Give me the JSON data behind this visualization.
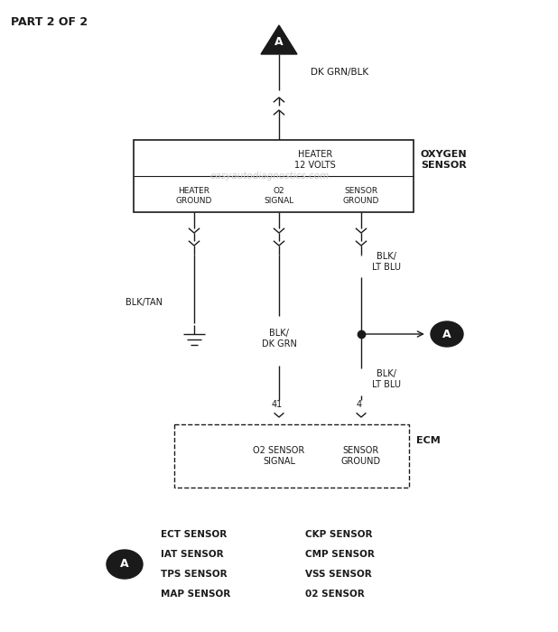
{
  "title": "PART 2 OF 2",
  "bg_color": "#ffffff",
  "text_color": "#1a1a1a",
  "watermark": "easyautodiagnostics.com",
  "wire_dk_grn_blk_label": "DK GRN/BLK",
  "wire_blk_tan_label": "BLK/TAN",
  "wire_blk_lt_blu_label1": "BLK/\nLT BLU",
  "wire_blk_dk_grn_label": "BLK/\nDK GRN",
  "wire_blk_lt_blu_label2": "BLK/\nLT BLU",
  "pin_41": "41",
  "pin_4": "4",
  "heater_label": "HEATER\n12 VOLTS",
  "oxygen_sensor_label": "OXYGEN\nSENSOR",
  "heater_ground_label": "HEATER\nGROUND",
  "o2_signal_label": "O2\nSIGNAL",
  "sensor_ground_label1": "SENSOR\nGROUND",
  "ecm_label": "ECM",
  "o2_sensor_signal_label": "O2 SENSOR\nSIGNAL",
  "sensor_ground_label2": "SENSOR\nGROUND",
  "legend_left": [
    "ECT SENSOR",
    "IAT SENSOR",
    "TPS SENSOR",
    "MAP SENSOR"
  ],
  "legend_right": [
    "CKP SENSOR",
    "CMP SENSOR",
    "VSS SENSOR",
    "02 SENSOR"
  ],
  "figsize": [
    6.18,
    7.0
  ],
  "dpi": 100
}
